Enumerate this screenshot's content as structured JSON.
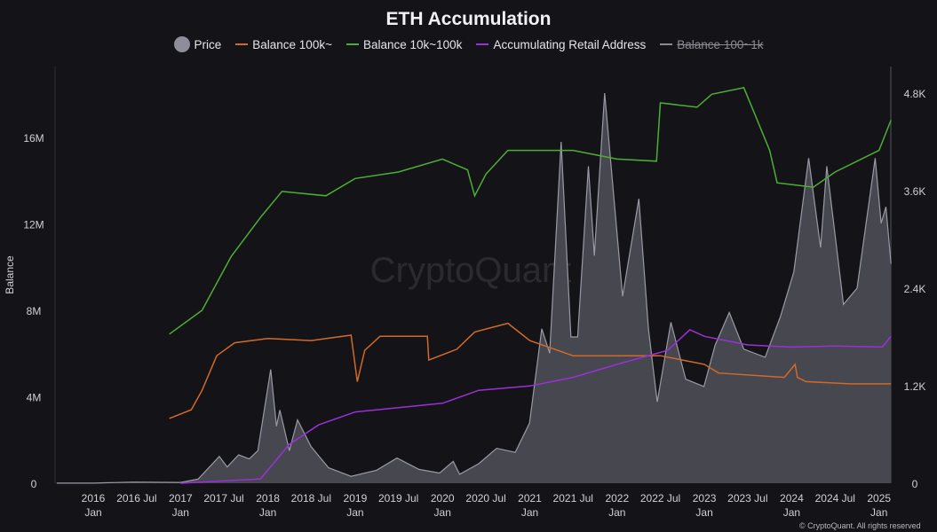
{
  "chart_data": {
    "type": "line",
    "title": "ETH Accumulation",
    "ylabel": "Balance",
    "ylim": [
      0,
      19000000
    ],
    "y2lim": [
      0,
      5200
    ],
    "yticks": [
      "0",
      "4M",
      "8M",
      "12M",
      "16M"
    ],
    "y2ticks": [
      "0",
      "1.2K",
      "2.4K",
      "3.6K",
      "4.8K"
    ],
    "xticks": [
      {
        "label": "2016",
        "sub": "Jan",
        "date": "2016-01-01"
      },
      {
        "label": "2016 Jul",
        "sub": "",
        "date": "2016-07-01"
      },
      {
        "label": "2017",
        "sub": "Jan",
        "date": "2017-01-01"
      },
      {
        "label": "2017 Jul",
        "sub": "",
        "date": "2017-07-01"
      },
      {
        "label": "2018",
        "sub": "Jan",
        "date": "2018-01-01"
      },
      {
        "label": "2018 Jul",
        "sub": "",
        "date": "2018-07-01"
      },
      {
        "label": "2019",
        "sub": "Jan",
        "date": "2019-01-01"
      },
      {
        "label": "2019 Jul",
        "sub": "",
        "date": "2019-07-01"
      },
      {
        "label": "2020",
        "sub": "Jan",
        "date": "2020-01-01"
      },
      {
        "label": "2020 Jul",
        "sub": "",
        "date": "2020-07-01"
      },
      {
        "label": "2021",
        "sub": "Jan",
        "date": "2021-01-01"
      },
      {
        "label": "2021 Jul",
        "sub": "",
        "date": "2021-07-01"
      },
      {
        "label": "2022",
        "sub": "Jan",
        "date": "2022-01-01"
      },
      {
        "label": "2022 Jul",
        "sub": "",
        "date": "2022-07-01"
      },
      {
        "label": "2023",
        "sub": "Jan",
        "date": "2023-01-01"
      },
      {
        "label": "2023 Jul",
        "sub": "",
        "date": "2023-07-01"
      },
      {
        "label": "2024",
        "sub": "Jan",
        "date": "2024-01-01"
      },
      {
        "label": "2024 Jul",
        "sub": "",
        "date": "2024-07-01"
      },
      {
        "label": "2025",
        "sub": "Jan",
        "date": "2025-01-01"
      }
    ],
    "grid": false,
    "legend_position": "top-center",
    "watermark": "CryptoQuant",
    "copyright": "© CryptoQuant. All rights reserved",
    "series": [
      {
        "name": "Price",
        "axis": "right",
        "style": "area",
        "color": "#8e8e9a",
        "visible": true,
        "points": [
          [
            "2015-08-01",
            1
          ],
          [
            "2016-01-01",
            1
          ],
          [
            "2016-06-15",
            14
          ],
          [
            "2017-01-01",
            10
          ],
          [
            "2017-03-15",
            50
          ],
          [
            "2017-06-12",
            330
          ],
          [
            "2017-07-15",
            200
          ],
          [
            "2017-09-01",
            350
          ],
          [
            "2017-10-15",
            300
          ],
          [
            "2017-11-20",
            400
          ],
          [
            "2018-01-13",
            1400
          ],
          [
            "2018-02-06",
            700
          ],
          [
            "2018-02-20",
            900
          ],
          [
            "2018-04-01",
            400
          ],
          [
            "2018-05-05",
            780
          ],
          [
            "2018-07-01",
            450
          ],
          [
            "2018-09-12",
            190
          ],
          [
            "2018-12-15",
            85
          ],
          [
            "2019-04-01",
            160
          ],
          [
            "2019-06-25",
            310
          ],
          [
            "2019-09-25",
            170
          ],
          [
            "2019-12-20",
            125
          ],
          [
            "2020-02-15",
            270
          ],
          [
            "2020-03-13",
            110
          ],
          [
            "2020-06-01",
            240
          ],
          [
            "2020-08-15",
            430
          ],
          [
            "2020-11-01",
            380
          ],
          [
            "2020-12-31",
            740
          ],
          [
            "2021-02-20",
            1900
          ],
          [
            "2021-03-25",
            1600
          ],
          [
            "2021-05-12",
            4200
          ],
          [
            "2021-06-22",
            1800
          ],
          [
            "2021-07-20",
            1800
          ],
          [
            "2021-09-03",
            3900
          ],
          [
            "2021-09-28",
            2800
          ],
          [
            "2021-11-10",
            4800
          ],
          [
            "2022-01-24",
            2300
          ],
          [
            "2022-04-02",
            3500
          ],
          [
            "2022-05-12",
            1900
          ],
          [
            "2022-06-18",
            1000
          ],
          [
            "2022-08-14",
            1980
          ],
          [
            "2022-10-15",
            1280
          ],
          [
            "2022-12-30",
            1190
          ],
          [
            "2023-02-15",
            1700
          ],
          [
            "2023-04-15",
            2100
          ],
          [
            "2023-06-15",
            1650
          ],
          [
            "2023-09-12",
            1550
          ],
          [
            "2023-11-15",
            2050
          ],
          [
            "2024-01-10",
            2600
          ],
          [
            "2024-03-12",
            4000
          ],
          [
            "2024-05-01",
            2900
          ],
          [
            "2024-05-27",
            3900
          ],
          [
            "2024-08-05",
            2200
          ],
          [
            "2024-10-01",
            2400
          ],
          [
            "2024-12-16",
            4000
          ],
          [
            "2025-01-10",
            3200
          ],
          [
            "2025-01-30",
            3400
          ],
          [
            "2025-02-20",
            2700
          ]
        ]
      },
      {
        "name": "Balance 100k~",
        "axis": "left",
        "color": "#d06a2a",
        "visible": true,
        "points": [
          [
            "2016-11-15",
            3.0
          ],
          [
            "2017-02-15",
            3.4
          ],
          [
            "2017-04-01",
            4.3
          ],
          [
            "2017-06-01",
            5.9
          ],
          [
            "2017-08-15",
            6.5
          ],
          [
            "2018-01-01",
            6.7
          ],
          [
            "2018-07-01",
            6.6
          ],
          [
            "2018-12-15",
            6.85
          ],
          [
            "2019-01-10",
            4.7
          ],
          [
            "2019-02-10",
            6.15
          ],
          [
            "2019-04-15",
            6.8
          ],
          [
            "2019-10-30",
            6.8
          ],
          [
            "2019-11-05",
            5.7
          ],
          [
            "2020-03-01",
            6.2
          ],
          [
            "2020-05-15",
            7.0
          ],
          [
            "2020-10-01",
            7.4
          ],
          [
            "2021-01-01",
            6.6
          ],
          [
            "2021-07-01",
            5.9
          ],
          [
            "2022-01-01",
            5.9
          ],
          [
            "2022-07-01",
            5.9
          ],
          [
            "2023-01-01",
            5.5
          ],
          [
            "2023-03-01",
            5.1
          ],
          [
            "2023-12-01",
            4.9
          ],
          [
            "2024-01-15",
            5.5
          ],
          [
            "2024-01-25",
            4.9
          ],
          [
            "2024-03-01",
            4.7
          ],
          [
            "2024-09-01",
            4.6
          ],
          [
            "2025-02-20",
            4.6
          ]
        ]
      },
      {
        "name": "Balance 10k~100k",
        "axis": "left",
        "color": "#4caf35",
        "visible": true,
        "points": [
          [
            "2016-11-15",
            6.9
          ],
          [
            "2017-04-01",
            8.0
          ],
          [
            "2017-08-01",
            10.5
          ],
          [
            "2017-12-01",
            12.3
          ],
          [
            "2018-03-01",
            13.5
          ],
          [
            "2018-09-01",
            13.3
          ],
          [
            "2019-01-01",
            14.1
          ],
          [
            "2019-07-01",
            14.4
          ],
          [
            "2020-01-01",
            15.0
          ],
          [
            "2020-04-15",
            14.5
          ],
          [
            "2020-05-15",
            13.3
          ],
          [
            "2020-07-01",
            14.3
          ],
          [
            "2020-10-01",
            15.4
          ],
          [
            "2021-07-01",
            15.4
          ],
          [
            "2022-01-01",
            15.0
          ],
          [
            "2022-06-15",
            14.9
          ],
          [
            "2022-07-01",
            17.6
          ],
          [
            "2022-12-01",
            17.4
          ],
          [
            "2023-02-01",
            18.0
          ],
          [
            "2023-06-15",
            18.3
          ],
          [
            "2023-07-15",
            17.5
          ],
          [
            "2023-10-01",
            15.4
          ],
          [
            "2023-11-01",
            13.9
          ],
          [
            "2024-04-01",
            13.7
          ],
          [
            "2024-07-01",
            14.4
          ],
          [
            "2025-01-01",
            15.4
          ],
          [
            "2025-02-20",
            16.8
          ]
        ]
      },
      {
        "name": "Accumulating Retail Address",
        "axis": "left",
        "color": "#9b30d9",
        "visible": true,
        "points": [
          [
            "2017-01-01",
            0.0
          ],
          [
            "2017-12-01",
            0.2
          ],
          [
            "2018-04-01",
            1.8
          ],
          [
            "2018-08-01",
            2.7
          ],
          [
            "2019-01-01",
            3.3
          ],
          [
            "2019-07-01",
            3.5
          ],
          [
            "2020-01-01",
            3.7
          ],
          [
            "2020-06-01",
            4.3
          ],
          [
            "2021-01-01",
            4.5
          ],
          [
            "2021-07-01",
            4.9
          ],
          [
            "2022-01-01",
            5.5
          ],
          [
            "2022-08-01",
            6.15
          ],
          [
            "2022-11-01",
            7.1
          ],
          [
            "2023-01-01",
            6.8
          ],
          [
            "2023-07-01",
            6.4
          ],
          [
            "2024-01-01",
            6.3
          ],
          [
            "2024-07-01",
            6.35
          ],
          [
            "2025-01-15",
            6.3
          ],
          [
            "2025-02-20",
            6.8
          ]
        ]
      },
      {
        "name": "Balance 100~1k",
        "axis": "left",
        "color": "#8a8a92",
        "visible": false,
        "points": []
      }
    ]
  }
}
